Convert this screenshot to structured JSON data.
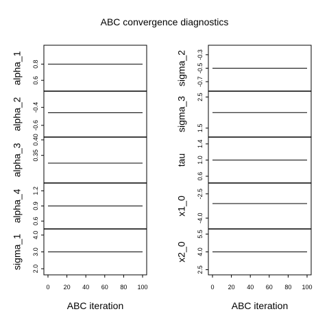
{
  "title": "ABC convergence diagnostics",
  "chart_data": {
    "type": "line",
    "xlabel": "ABC iteration",
    "x_ticks": [
      "0",
      "20",
      "40",
      "60",
      "80",
      "100"
    ],
    "xlim": [
      0,
      100
    ],
    "columns": [
      {
        "panels": [
          {
            "ylabel": "alpha_1",
            "ylim": [
              0.5,
              1.0
            ],
            "value": 0.8,
            "ticks": [
              {
                "v": 0.6,
                "label": "0.6"
              },
              {
                "v": 0.8,
                "label": "0.8"
              }
            ]
          },
          {
            "ylabel": "alpha_2",
            "ylim": [
              -0.7,
              -0.25
            ],
            "value": -0.46,
            "ticks": [
              {
                "v": -0.6,
                "label": "-0.6"
              },
              {
                "v": -0.4,
                "label": "-0.4"
              }
            ]
          },
          {
            "ylabel": "alpha_3",
            "ylim": [
              0.27,
              0.4
            ],
            "value": 0.325,
            "ticks": [
              {
                "v": 0.35,
                "label": "0.35"
              },
              {
                "v": 0.4,
                "label": "0.40"
              }
            ]
          },
          {
            "ylabel": "alpha_4",
            "ylim": [
              0.5,
              1.3
            ],
            "value": 0.9,
            "ticks": [
              {
                "v": 0.6,
                "label": "0.6"
              },
              {
                "v": 0.9,
                "label": "0.9"
              },
              {
                "v": 1.2,
                "label": "1.2"
              }
            ]
          },
          {
            "ylabel": "sigma_1",
            "ylim": [
              1.8,
              4.2
            ],
            "value": 3.0,
            "ticks": [
              {
                "v": 2.0,
                "label": "2.0"
              },
              {
                "v": 3.0,
                "label": "3.0"
              },
              {
                "v": 4.0,
                "label": "4.0"
              }
            ]
          }
        ]
      },
      {
        "panels": [
          {
            "ylabel": "sigma_2",
            "ylim": [
              -0.8,
              -0.2
            ],
            "value": -0.5,
            "ticks": [
              {
                "v": -0.7,
                "label": "-0.7"
              },
              {
                "v": -0.5,
                "label": "-0.5"
              },
              {
                "v": -0.3,
                "label": "-0.3"
              }
            ]
          },
          {
            "ylabel": "sigma_3",
            "ylim": [
              1.3,
              2.6
            ],
            "value": 2.0,
            "ticks": [
              {
                "v": 1.5,
                "label": "1.5"
              },
              {
                "v": 2.5,
                "label": "2.5"
              }
            ]
          },
          {
            "ylabel": "tau",
            "ylim": [
              0.5,
              1.5
            ],
            "value": 1.0,
            "ticks": [
              {
                "v": 0.6,
                "label": "0.6"
              },
              {
                "v": 1.0,
                "label": "1.0"
              },
              {
                "v": 1.4,
                "label": "1.4"
              }
            ]
          },
          {
            "ylabel": "x1_0",
            "ylim": [
              -4.5,
              -2.0
            ],
            "value": -3.1,
            "ticks": [
              {
                "v": -4.0,
                "label": "-4.0"
              },
              {
                "v": -2.5,
                "label": "-2.5"
              }
            ]
          },
          {
            "ylabel": "x2_0",
            "ylim": [
              2.3,
              5.7
            ],
            "value": 4.0,
            "ticks": [
              {
                "v": 2.5,
                "label": "2.5"
              },
              {
                "v": 4.0,
                "label": "4.0"
              },
              {
                "v": 5.5,
                "label": "5.5"
              }
            ]
          }
        ]
      }
    ]
  }
}
